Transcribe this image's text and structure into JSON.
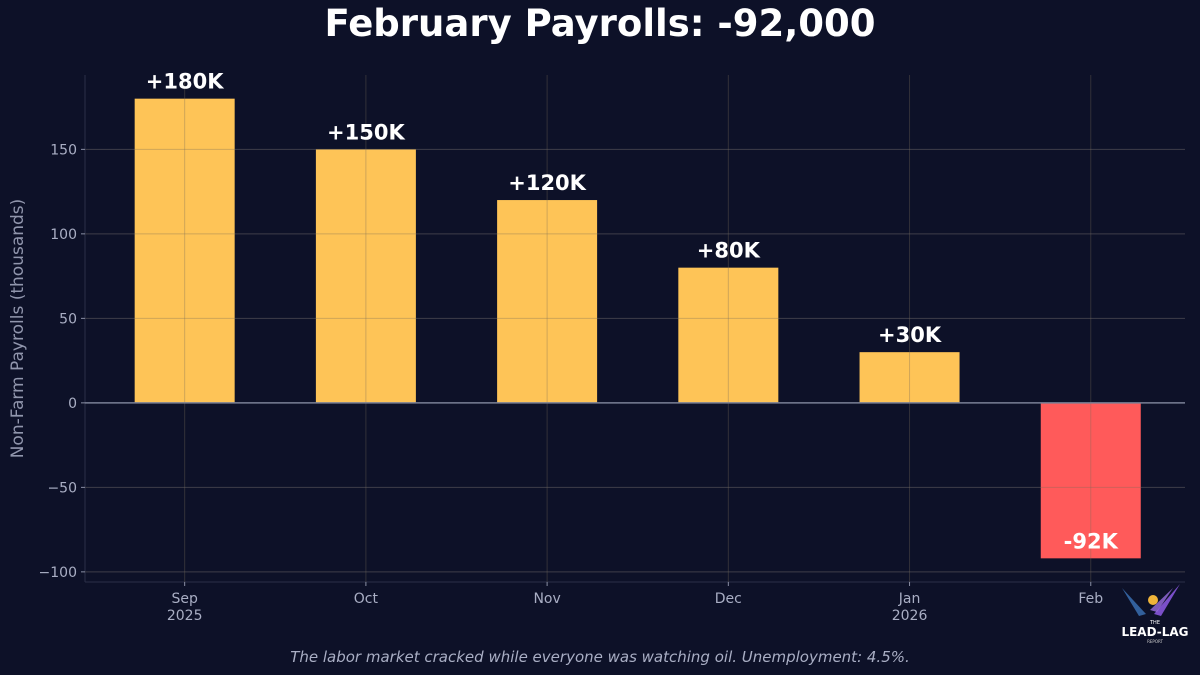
{
  "chart_data": {
    "type": "bar",
    "title": "February Payrolls: -92,000",
    "ylabel": "Non-Farm Payrolls (thousands)",
    "xlabel": "",
    "categories": [
      "Sep\n2025",
      "Oct",
      "Nov",
      "Dec",
      "Jan\n2026",
      "Feb"
    ],
    "values": [
      180,
      150,
      120,
      80,
      30,
      -92
    ],
    "data_labels": [
      "+180K",
      "+150K",
      "+120K",
      "+80K",
      "+30K",
      "-92K"
    ],
    "ylim": [
      -106,
      194
    ],
    "yticks": [
      -100,
      -50,
      0,
      50,
      100,
      150
    ],
    "ytick_labels": [
      "−100",
      "−50",
      "0",
      "50",
      "100",
      "150"
    ],
    "grid": true,
    "colors": {
      "positive": "#fec457",
      "negative": "#ff5a5a",
      "background": "#0d1128",
      "zero_line": "#7a7f95"
    }
  },
  "caption": "The labor market cracked while everyone was watching oil. Unemployment: 4.5%.",
  "logo": {
    "top": "THE",
    "main": "LEAD-LAG",
    "sub": "REPORT"
  }
}
